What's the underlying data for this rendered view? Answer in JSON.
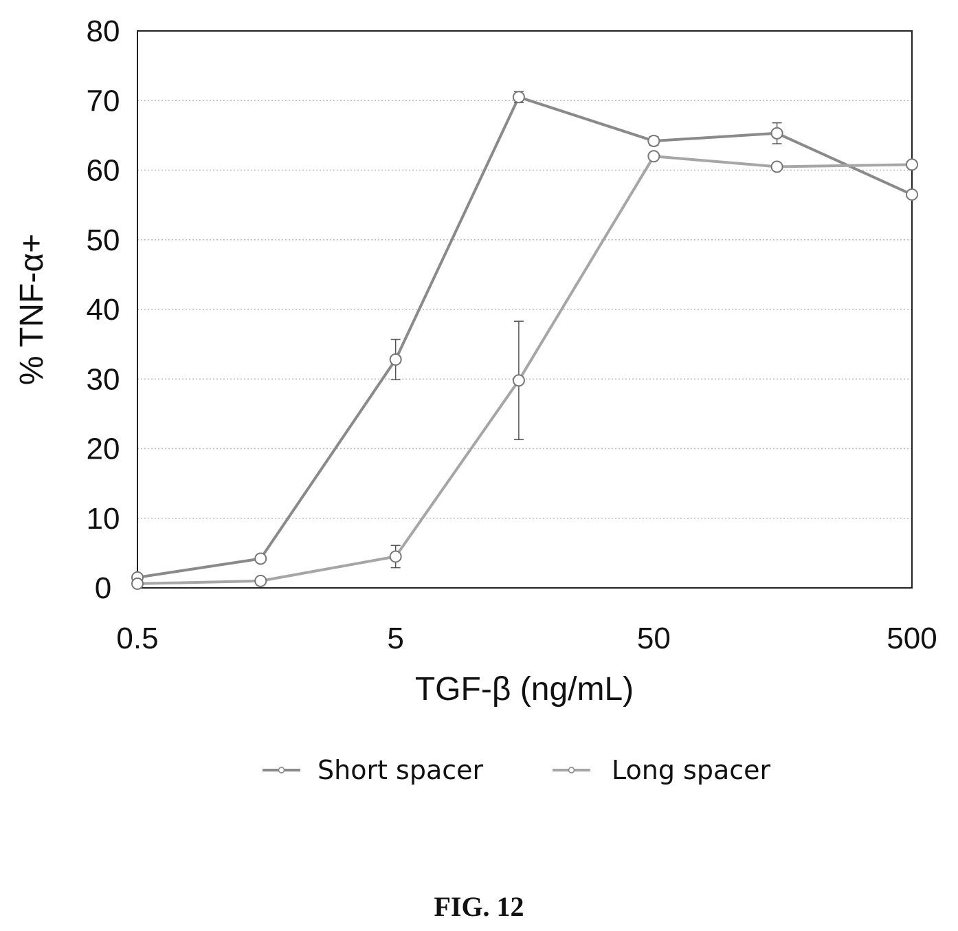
{
  "chart_data": {
    "type": "line",
    "title": "",
    "xlabel": "TGF-β (ng/mL)",
    "ylabel": "% TNF-α+",
    "x_scale": "log",
    "xlim": [
      0.5,
      500
    ],
    "ylim": [
      0,
      80
    ],
    "x_ticks": [
      "0.5",
      "5",
      "50",
      "500"
    ],
    "y_ticks": [
      "0",
      "10",
      "20",
      "30",
      "40",
      "50",
      "60",
      "70",
      "80"
    ],
    "grid": "horizontal dotted",
    "legend_position": "bottom",
    "x": [
      0.5,
      1.5,
      5,
      15,
      50,
      150,
      500
    ],
    "series": [
      {
        "name": "Short spacer",
        "values": [
          1.5,
          4.2,
          32.8,
          70.5,
          64.2,
          65.3,
          56.5
        ],
        "errors": [
          0.3,
          0.5,
          2.9,
          0.8,
          0.6,
          1.5,
          0.4
        ]
      },
      {
        "name": "Long spacer",
        "values": [
          0.6,
          1.0,
          4.5,
          29.8,
          62.0,
          60.5,
          60.8
        ],
        "errors": [
          0.2,
          0.3,
          1.6,
          8.5,
          0.5,
          0.4,
          0.4
        ]
      }
    ]
  },
  "figure": {
    "caption": "FIG. 12"
  }
}
